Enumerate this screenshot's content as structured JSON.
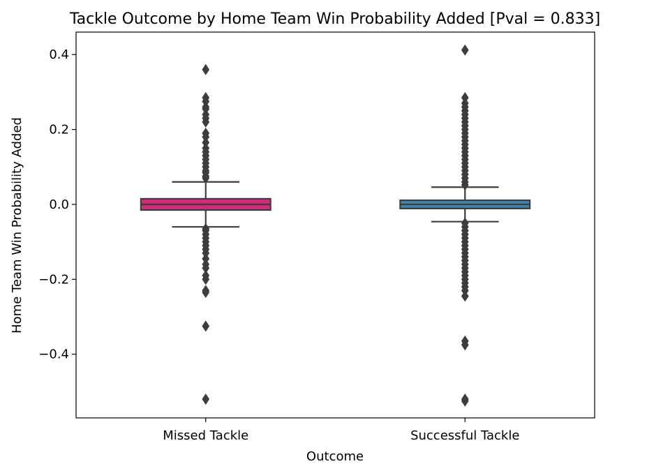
{
  "chart_data": {
    "type": "box",
    "title": "Tackle Outcome by Home Team Win Probability Added [Pval = 0.833]",
    "xlabel": "Outcome",
    "ylabel": "Home Team Win Probability Added",
    "categories": [
      "Missed Tackle",
      "Successful Tackle"
    ],
    "ylim": [
      -0.57,
      0.46
    ],
    "yticks": [
      -0.4,
      -0.2,
      0.0,
      0.2,
      0.4
    ],
    "ytick_labels": [
      "−0.4",
      "−0.2",
      "0.0",
      "0.2",
      "0.4"
    ],
    "grid": false,
    "boxes": [
      {
        "category": "Missed Tackle",
        "color": "#d62a7c",
        "whisker_low": -0.06,
        "q1": -0.015,
        "median": 0.0,
        "q3": 0.015,
        "whisker_high": 0.06,
        "outliers": [
          0.36,
          0.285,
          0.275,
          0.26,
          0.255,
          0.24,
          0.23,
          0.22,
          0.19,
          0.18,
          0.165,
          0.15,
          0.14,
          0.13,
          0.12,
          0.11,
          0.1,
          0.09,
          0.085,
          0.075,
          0.07,
          -0.065,
          -0.07,
          -0.08,
          -0.09,
          -0.1,
          -0.11,
          -0.12,
          -0.13,
          -0.145,
          -0.16,
          -0.17,
          -0.19,
          -0.2,
          -0.23,
          -0.235,
          -0.325,
          -0.52
        ]
      },
      {
        "category": "Successful Tackle",
        "color": "#3b86b0",
        "whisker_low": -0.046,
        "q1": -0.011,
        "median": 0.0,
        "q3": 0.011,
        "whisker_high": 0.046,
        "outliers": [
          0.412,
          0.285,
          0.27,
          0.26,
          0.25,
          0.24,
          0.23,
          0.22,
          0.21,
          0.2,
          0.19,
          0.18,
          0.17,
          0.16,
          0.15,
          0.14,
          0.13,
          0.12,
          0.11,
          0.1,
          0.09,
          0.08,
          0.07,
          0.06,
          0.052,
          -0.05,
          -0.06,
          -0.07,
          -0.08,
          -0.09,
          -0.1,
          -0.11,
          -0.12,
          -0.13,
          -0.14,
          -0.15,
          -0.16,
          -0.17,
          -0.18,
          -0.19,
          -0.2,
          -0.21,
          -0.22,
          -0.23,
          -0.245,
          -0.365,
          -0.375,
          -0.52,
          -0.525
        ]
      }
    ]
  }
}
